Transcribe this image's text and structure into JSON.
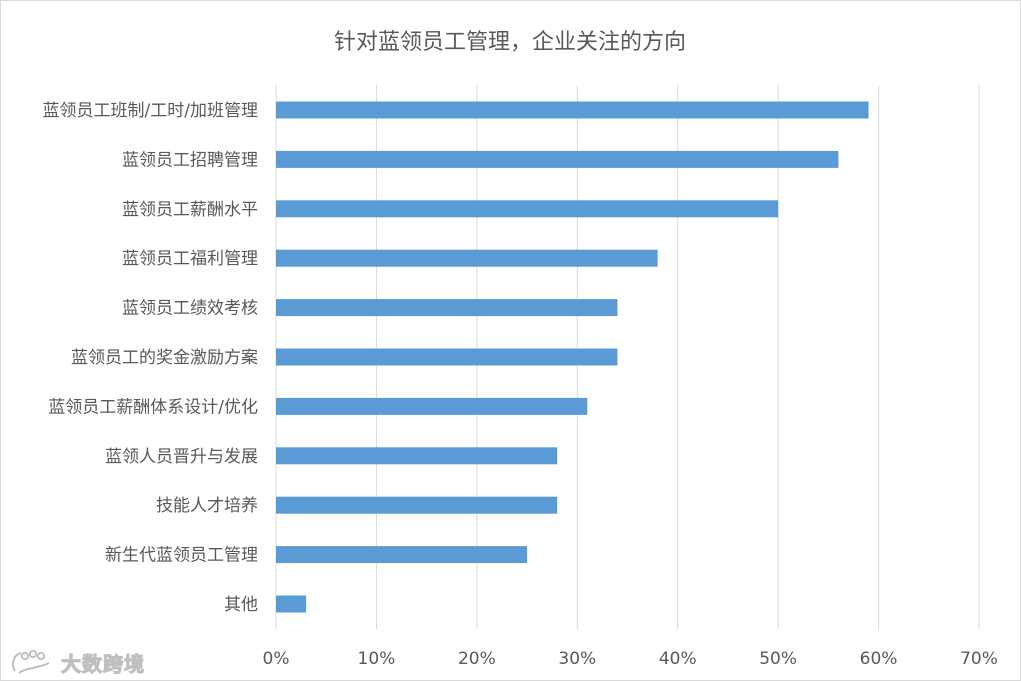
{
  "chart_data": {
    "type": "bar",
    "orientation": "horizontal",
    "title": "针对蓝领员工管理，企业关注的方向",
    "categories": [
      "蓝领员工班制/工时/加班管理",
      "蓝领员工招聘管理",
      "蓝领员工薪酬水平",
      "蓝领员工福利管理",
      "蓝领员工绩效考核",
      "蓝领员工的奖金激励方案",
      "蓝领员工薪酬体系设计/优化",
      "蓝领人员晋升与发展",
      "技能人才培养",
      "新生代蓝领员工管理",
      "其他"
    ],
    "values": [
      59,
      56,
      50,
      38,
      34,
      34,
      31,
      28,
      28,
      25,
      3
    ],
    "unit": "%",
    "xlim": [
      0,
      70
    ],
    "ticks": [
      0,
      10,
      20,
      30,
      40,
      50,
      60,
      70
    ],
    "tick_labels": [
      "0%",
      "10%",
      "20%",
      "30%",
      "40%",
      "50%",
      "60%",
      "70%"
    ],
    "grid": true,
    "legend": "none",
    "bar_color": "#5b9bd5",
    "grid_color": "#d9d9d9"
  },
  "watermark": {
    "text": "大数跨境",
    "icon": "logo-icon"
  }
}
